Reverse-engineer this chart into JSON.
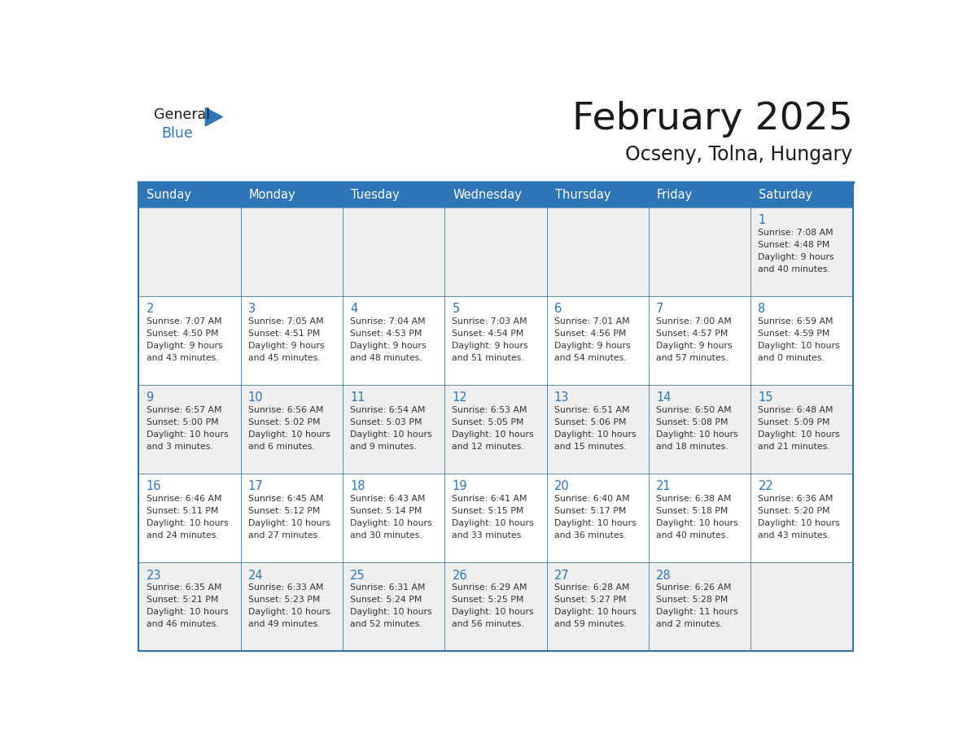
{
  "title": "February 2025",
  "subtitle": "Ocseny, Tolna, Hungary",
  "header_bg": "#2E75B6",
  "header_text_color": "#FFFFFF",
  "cell_bg_light": "#EFEFEF",
  "cell_bg_white": "#FFFFFF",
  "border_color": "#2E75B6",
  "day_headers": [
    "Sunday",
    "Monday",
    "Tuesday",
    "Wednesday",
    "Thursday",
    "Friday",
    "Saturday"
  ],
  "title_color": "#1A1A1A",
  "subtitle_color": "#1A1A1A",
  "day_num_color": "#2E75B6",
  "cell_text_color": "#333333",
  "logo_general_color": "#1A1A1A",
  "logo_blue_color": "#2E75B6",
  "logo_triangle_color": "#2E75B6",
  "weeks": [
    [
      {
        "day": "",
        "info": ""
      },
      {
        "day": "",
        "info": ""
      },
      {
        "day": "",
        "info": ""
      },
      {
        "day": "",
        "info": ""
      },
      {
        "day": "",
        "info": ""
      },
      {
        "day": "",
        "info": ""
      },
      {
        "day": "1",
        "info": "Sunrise: 7:08 AM\nSunset: 4:48 PM\nDaylight: 9 hours\nand 40 minutes."
      }
    ],
    [
      {
        "day": "2",
        "info": "Sunrise: 7:07 AM\nSunset: 4:50 PM\nDaylight: 9 hours\nand 43 minutes."
      },
      {
        "day": "3",
        "info": "Sunrise: 7:05 AM\nSunset: 4:51 PM\nDaylight: 9 hours\nand 45 minutes."
      },
      {
        "day": "4",
        "info": "Sunrise: 7:04 AM\nSunset: 4:53 PM\nDaylight: 9 hours\nand 48 minutes."
      },
      {
        "day": "5",
        "info": "Sunrise: 7:03 AM\nSunset: 4:54 PM\nDaylight: 9 hours\nand 51 minutes."
      },
      {
        "day": "6",
        "info": "Sunrise: 7:01 AM\nSunset: 4:56 PM\nDaylight: 9 hours\nand 54 minutes."
      },
      {
        "day": "7",
        "info": "Sunrise: 7:00 AM\nSunset: 4:57 PM\nDaylight: 9 hours\nand 57 minutes."
      },
      {
        "day": "8",
        "info": "Sunrise: 6:59 AM\nSunset: 4:59 PM\nDaylight: 10 hours\nand 0 minutes."
      }
    ],
    [
      {
        "day": "9",
        "info": "Sunrise: 6:57 AM\nSunset: 5:00 PM\nDaylight: 10 hours\nand 3 minutes."
      },
      {
        "day": "10",
        "info": "Sunrise: 6:56 AM\nSunset: 5:02 PM\nDaylight: 10 hours\nand 6 minutes."
      },
      {
        "day": "11",
        "info": "Sunrise: 6:54 AM\nSunset: 5:03 PM\nDaylight: 10 hours\nand 9 minutes."
      },
      {
        "day": "12",
        "info": "Sunrise: 6:53 AM\nSunset: 5:05 PM\nDaylight: 10 hours\nand 12 minutes."
      },
      {
        "day": "13",
        "info": "Sunrise: 6:51 AM\nSunset: 5:06 PM\nDaylight: 10 hours\nand 15 minutes."
      },
      {
        "day": "14",
        "info": "Sunrise: 6:50 AM\nSunset: 5:08 PM\nDaylight: 10 hours\nand 18 minutes."
      },
      {
        "day": "15",
        "info": "Sunrise: 6:48 AM\nSunset: 5:09 PM\nDaylight: 10 hours\nand 21 minutes."
      }
    ],
    [
      {
        "day": "16",
        "info": "Sunrise: 6:46 AM\nSunset: 5:11 PM\nDaylight: 10 hours\nand 24 minutes."
      },
      {
        "day": "17",
        "info": "Sunrise: 6:45 AM\nSunset: 5:12 PM\nDaylight: 10 hours\nand 27 minutes."
      },
      {
        "day": "18",
        "info": "Sunrise: 6:43 AM\nSunset: 5:14 PM\nDaylight: 10 hours\nand 30 minutes."
      },
      {
        "day": "19",
        "info": "Sunrise: 6:41 AM\nSunset: 5:15 PM\nDaylight: 10 hours\nand 33 minutes."
      },
      {
        "day": "20",
        "info": "Sunrise: 6:40 AM\nSunset: 5:17 PM\nDaylight: 10 hours\nand 36 minutes."
      },
      {
        "day": "21",
        "info": "Sunrise: 6:38 AM\nSunset: 5:18 PM\nDaylight: 10 hours\nand 40 minutes."
      },
      {
        "day": "22",
        "info": "Sunrise: 6:36 AM\nSunset: 5:20 PM\nDaylight: 10 hours\nand 43 minutes."
      }
    ],
    [
      {
        "day": "23",
        "info": "Sunrise: 6:35 AM\nSunset: 5:21 PM\nDaylight: 10 hours\nand 46 minutes."
      },
      {
        "day": "24",
        "info": "Sunrise: 6:33 AM\nSunset: 5:23 PM\nDaylight: 10 hours\nand 49 minutes."
      },
      {
        "day": "25",
        "info": "Sunrise: 6:31 AM\nSunset: 5:24 PM\nDaylight: 10 hours\nand 52 minutes."
      },
      {
        "day": "26",
        "info": "Sunrise: 6:29 AM\nSunset: 5:25 PM\nDaylight: 10 hours\nand 56 minutes."
      },
      {
        "day": "27",
        "info": "Sunrise: 6:28 AM\nSunset: 5:27 PM\nDaylight: 10 hours\nand 59 minutes."
      },
      {
        "day": "28",
        "info": "Sunrise: 6:26 AM\nSunset: 5:28 PM\nDaylight: 11 hours\nand 2 minutes."
      },
      {
        "day": "",
        "info": ""
      }
    ]
  ]
}
